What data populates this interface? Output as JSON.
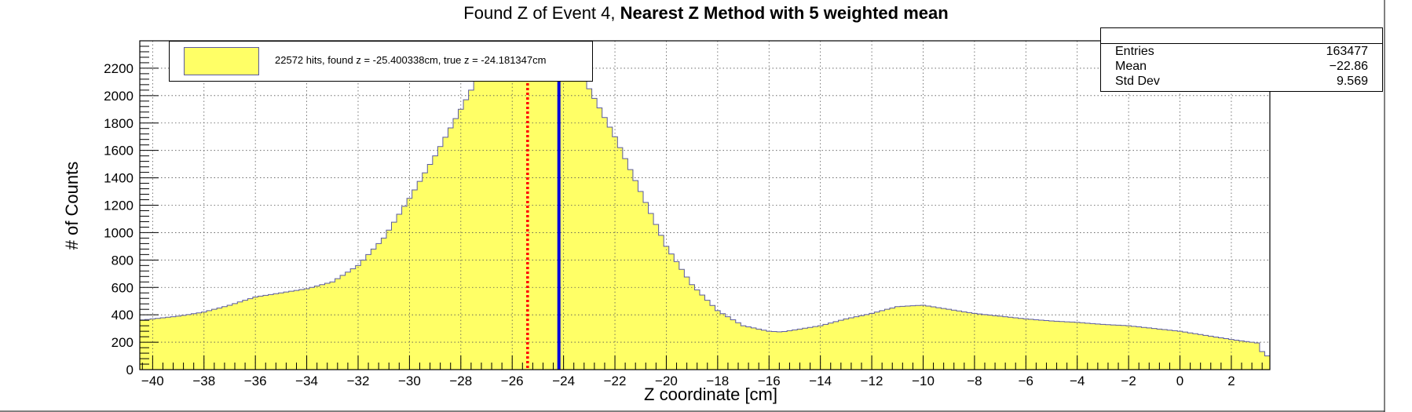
{
  "title": {
    "prefix": "Found Z of Event 4, ",
    "bold": "Nearest Z Method with 5 weighted mean"
  },
  "stats": {
    "rows": [
      {
        "label": "Entries",
        "value": "163477"
      },
      {
        "label": "Mean",
        "value": "−22.86"
      },
      {
        "label": "Std Dev",
        "value": "9.569"
      }
    ]
  },
  "legend": {
    "entry": "22572 hits, found z = -25.400338cm, true z = -24.181347cm"
  },
  "colors": {
    "fill": "#ffff66",
    "outline": "#5a5aa0",
    "found_line": "#ff0000",
    "true_line": "#0000dd"
  },
  "chart_data": {
    "type": "bar",
    "title": "Found Z of Event 4, Nearest Z Method with 5 weighted mean",
    "xlabel": "Z coordinate [cm]",
    "ylabel": "# of Counts",
    "xlim": [
      -40.5,
      3.5
    ],
    "ylim": [
      0,
      2400
    ],
    "xticks": [
      -40,
      -38,
      -36,
      -34,
      -32,
      -30,
      -28,
      -26,
      -24,
      -22,
      -20,
      -18,
      -16,
      -14,
      -12,
      -10,
      -8,
      -6,
      -4,
      -2,
      0,
      2
    ],
    "xtick_labels": [
      "−40",
      "−38",
      "−36",
      "−34",
      "−32",
      "−30",
      "−28",
      "−26",
      "−24",
      "−22",
      "−20",
      "−18",
      "−16",
      "−14",
      "−12",
      "−10",
      "−8",
      "−6",
      "−4",
      "−2",
      "0",
      "2"
    ],
    "yticks": [
      0,
      200,
      400,
      600,
      800,
      1000,
      1200,
      1400,
      1600,
      1800,
      2000,
      2200
    ],
    "ytick_labels": [
      "0",
      "200",
      "400",
      "600",
      "800",
      "1000",
      "1200",
      "1400",
      "1600",
      "1800",
      "2000",
      "2200"
    ],
    "grid": true,
    "bin_width": 0.2,
    "profile": [
      [
        -40.5,
        360
      ],
      [
        -40.0,
        370
      ],
      [
        -39.0,
        390
      ],
      [
        -38.0,
        420
      ],
      [
        -37.0,
        470
      ],
      [
        -36.0,
        530
      ],
      [
        -35.0,
        560
      ],
      [
        -34.0,
        590
      ],
      [
        -33.0,
        640
      ],
      [
        -32.0,
        760
      ],
      [
        -31.0,
        960
      ],
      [
        -30.0,
        1250
      ],
      [
        -29.0,
        1560
      ],
      [
        -28.0,
        1900
      ],
      [
        -27.0,
        2250
      ],
      [
        -26.5,
        2450
      ],
      [
        -25.5,
        2550
      ],
      [
        -24.5,
        2500
      ],
      [
        -23.5,
        2300
      ],
      [
        -23.0,
        2050
      ],
      [
        -22.0,
        1700
      ],
      [
        -21.0,
        1300
      ],
      [
        -20.0,
        900
      ],
      [
        -19.0,
        620
      ],
      [
        -18.0,
        430
      ],
      [
        -17.0,
        320
      ],
      [
        -16.0,
        280
      ],
      [
        -15.5,
        275
      ],
      [
        -14.0,
        320
      ],
      [
        -13.0,
        370
      ],
      [
        -12.0,
        410
      ],
      [
        -11.0,
        460
      ],
      [
        -10.0,
        470
      ],
      [
        -9.0,
        440
      ],
      [
        -8.0,
        410
      ],
      [
        -7.0,
        390
      ],
      [
        -6.0,
        370
      ],
      [
        -5.0,
        355
      ],
      [
        -4.0,
        345
      ],
      [
        -3.0,
        330
      ],
      [
        -2.0,
        320
      ],
      [
        -1.0,
        300
      ],
      [
        0.0,
        280
      ],
      [
        1.0,
        250
      ],
      [
        2.0,
        220
      ],
      [
        3.0,
        195
      ],
      [
        3.3,
        100
      ]
    ],
    "vlines": [
      {
        "name": "found z",
        "x": -25.400338,
        "style": "dotted",
        "color": "#ff0000"
      },
      {
        "name": "true z",
        "x": -24.181347,
        "style": "solid",
        "color": "#0000dd"
      }
    ]
  }
}
